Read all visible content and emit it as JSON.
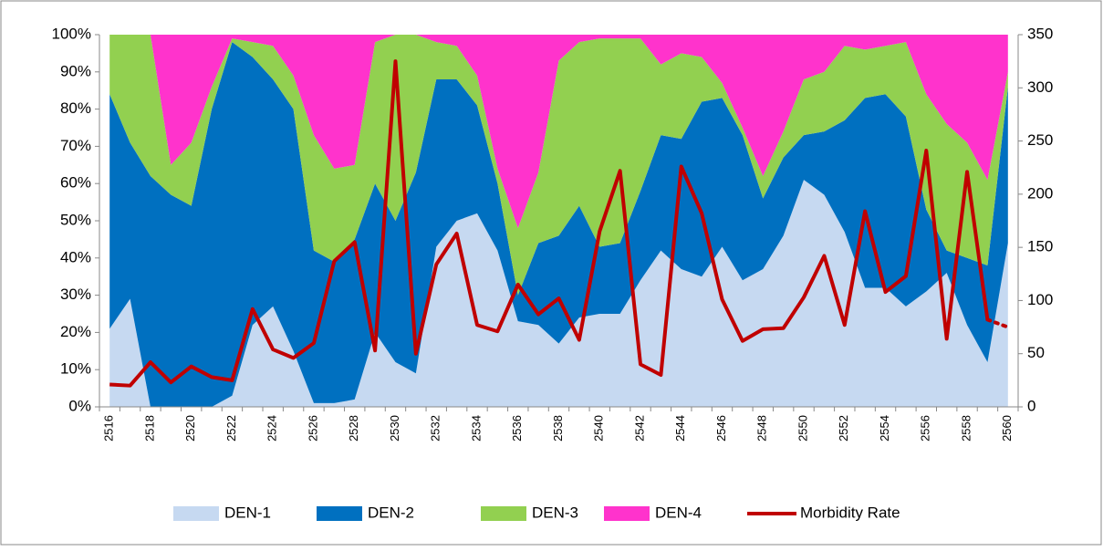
{
  "chart_data": {
    "type": "stacked_area_line",
    "categories": [
      "2516",
      null,
      "2518",
      null,
      "2520",
      null,
      "2522",
      null,
      "2524",
      null,
      "2526",
      null,
      "2528",
      null,
      "2530",
      null,
      "2532",
      null,
      "2534",
      null,
      "2536",
      null,
      "2538",
      null,
      "2540",
      null,
      "2542",
      null,
      "2544",
      null,
      "2546",
      null,
      "2548",
      null,
      "2550",
      null,
      "2552",
      null,
      "2554",
      null,
      "2556",
      null,
      "2558",
      null,
      "2560"
    ],
    "series": [
      {
        "name": "DEN-1",
        "color": "#c6d9f1",
        "values": [
          21,
          29,
          0,
          0,
          0,
          0,
          3,
          22,
          27,
          15,
          1,
          1,
          2,
          20,
          12,
          9,
          43,
          50,
          52,
          42,
          23,
          22,
          17,
          24,
          25,
          25,
          34,
          42,
          37,
          35,
          43,
          34,
          37,
          46,
          61,
          57,
          47,
          32,
          32,
          27,
          31,
          36,
          22,
          12,
          44
        ]
      },
      {
        "name": "DEN-2",
        "color": "#0070c0",
        "values": [
          63,
          42,
          62,
          57,
          54,
          80,
          95,
          72,
          61,
          65,
          41,
          38,
          43,
          40,
          38,
          54,
          45,
          38,
          29,
          18,
          7,
          22,
          29,
          30,
          18,
          19,
          24,
          31,
          35,
          47,
          40,
          39,
          19,
          21,
          12,
          17,
          30,
          51,
          52,
          51,
          22,
          6,
          18,
          26,
          42
        ]
      },
      {
        "name": "DEN-3",
        "color": "#92d050",
        "values": [
          16,
          29,
          38,
          8,
          17,
          6,
          1,
          4,
          9,
          9,
          31,
          25,
          20,
          38,
          50,
          37,
          10,
          9,
          8,
          4,
          18,
          19,
          47,
          44,
          56,
          55,
          41,
          19,
          23,
          12,
          4,
          2,
          6,
          7,
          15,
          16,
          20,
          13,
          13,
          20,
          31,
          34,
          31,
          23,
          4
        ]
      },
      {
        "name": "DEN-4",
        "color": "#ff33cc",
        "values": [
          0,
          0,
          0,
          35,
          29,
          14,
          1,
          2,
          3,
          11,
          27,
          36,
          35,
          2,
          0,
          0,
          2,
          3,
          11,
          36,
          52,
          37,
          7,
          2,
          1,
          1,
          1,
          8,
          5,
          6,
          13,
          25,
          38,
          26,
          12,
          10,
          3,
          4,
          3,
          2,
          16,
          24,
          29,
          39,
          10
        ]
      },
      {
        "name": "Morbidity Rate",
        "color": "#c00000",
        "axis": "y2",
        "dotted_last_segment": true,
        "values": [
          21,
          20,
          42,
          23,
          38,
          28,
          25,
          92,
          54,
          46,
          60,
          137,
          155,
          53,
          325,
          50,
          134,
          163,
          77,
          71,
          115,
          87,
          102,
          63,
          165,
          222,
          40,
          30,
          226,
          182,
          101,
          62,
          73,
          74,
          103,
          142,
          77,
          184,
          108,
          123,
          241,
          64,
          221,
          82,
          75
        ]
      }
    ],
    "ylim": [
      0,
      100
    ],
    "yticks": [
      {
        "value": 0,
        "label": "0%"
      },
      {
        "value": 10,
        "label": "10%"
      },
      {
        "value": 20,
        "label": "20%"
      },
      {
        "value": 30,
        "label": "30%"
      },
      {
        "value": 40,
        "label": "40%"
      },
      {
        "value": 50,
        "label": "50%"
      },
      {
        "value": 60,
        "label": "60%"
      },
      {
        "value": 70,
        "label": "70%"
      },
      {
        "value": 80,
        "label": "80%"
      },
      {
        "value": 90,
        "label": "90%"
      },
      {
        "value": 100,
        "label": "100%"
      }
    ],
    "y2lim": [
      0,
      350
    ],
    "y2ticks": [
      0,
      50,
      100,
      150,
      200,
      250,
      300,
      350
    ],
    "legend": "bottom"
  }
}
